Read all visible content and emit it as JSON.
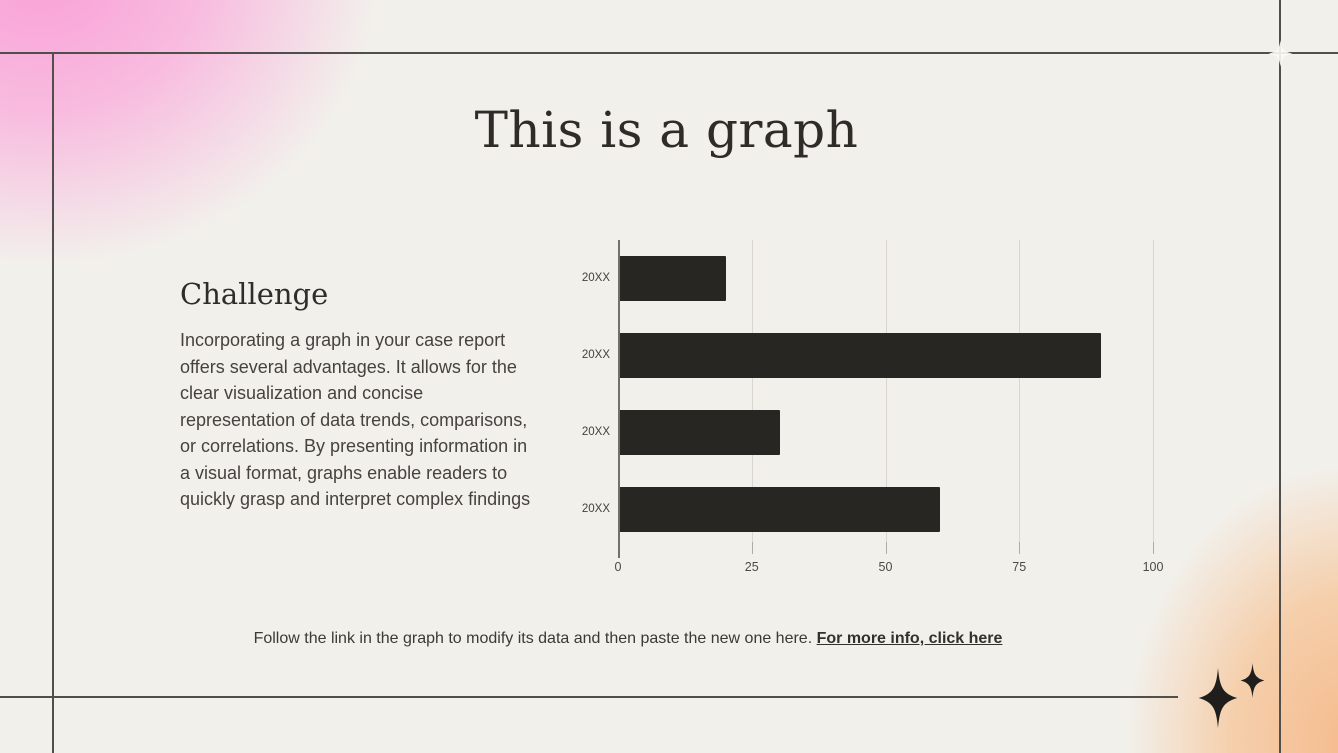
{
  "slide": {
    "title": "This is a graph",
    "section": {
      "heading": "Challenge",
      "body": "Incorporating a graph in your case report offers several advantages. It allows for the clear visualization and concise representation of data trends, comparisons, or correlations. By presenting information in a visual format, graphs enable readers to quickly grasp and interpret complex findings"
    },
    "caption": {
      "text": "Follow the link in the graph to modify its data and then paste the new one here. ",
      "link_label": "For more info, click here"
    },
    "colors": {
      "background": "#F2F0EB",
      "pink_accent": "#FA9BD6",
      "peach_accent": "#F5B888",
      "frame_line": "#514F4B",
      "sparkle": "#1F1E1C"
    }
  },
  "chart_data": {
    "type": "bar",
    "orientation": "horizontal",
    "title": "",
    "categories": [
      "20XX",
      "20XX",
      "20XX",
      "20XX"
    ],
    "values": [
      20,
      90,
      30,
      60
    ],
    "xticks": [
      0,
      25,
      50,
      75,
      100
    ],
    "xlim": [
      0,
      100
    ],
    "xlabel": "",
    "ylabel": "",
    "grid": true,
    "legend": false,
    "bar_color": "#282623"
  }
}
